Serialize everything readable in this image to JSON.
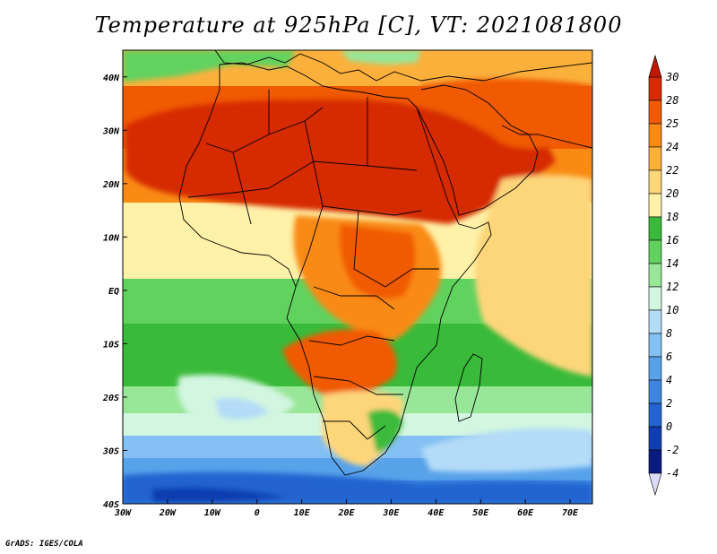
{
  "title": "Temperature at 925hPa [C], VT: 2021081800",
  "credit": "GrADS: IGES/COLA",
  "map": {
    "lon_range": [
      -30,
      75
    ],
    "lat_range": [
      -40,
      45
    ],
    "lon_ticks": [
      {
        "value": -30,
        "label": "30W"
      },
      {
        "value": -20,
        "label": "20W"
      },
      {
        "value": -10,
        "label": "10W"
      },
      {
        "value": 0,
        "label": "0"
      },
      {
        "value": 10,
        "label": "10E"
      },
      {
        "value": 20,
        "label": "20E"
      },
      {
        "value": 30,
        "label": "30E"
      },
      {
        "value": 40,
        "label": "40E"
      },
      {
        "value": 50,
        "label": "50E"
      },
      {
        "value": 60,
        "label": "60E"
      },
      {
        "value": 70,
        "label": "70E"
      }
    ],
    "lat_ticks": [
      {
        "value": 40,
        "label": "40N"
      },
      {
        "value": 30,
        "label": "30N"
      },
      {
        "value": 20,
        "label": "20N"
      },
      {
        "value": 10,
        "label": "10N"
      },
      {
        "value": 0,
        "label": "EQ"
      },
      {
        "value": -10,
        "label": "10S"
      },
      {
        "value": -20,
        "label": "20S"
      },
      {
        "value": -30,
        "label": "30S"
      },
      {
        "value": -40,
        "label": "40S"
      }
    ]
  },
  "colorbar": {
    "labels": [
      "30",
      "28",
      "25",
      "24",
      "22",
      "20",
      "18",
      "16",
      "14",
      "12",
      "10",
      "8",
      "6",
      "4",
      "2",
      "0",
      "-2",
      "-4"
    ],
    "colors": [
      "#d62a00",
      "#f05a00",
      "#f98a14",
      "#fbb03c",
      "#fed67a",
      "#fff1a8",
      "#3aba3a",
      "#62d25e",
      "#98e698",
      "#d2f6e0",
      "#b4dcf8",
      "#84c0f4",
      "#58a2ea",
      "#3c86e0",
      "#2264d0",
      "#103eb0",
      "#0a1a80"
    ],
    "top_arrow_color": "#c01800",
    "bottom_arrow_color": "#dcdcf8"
  }
}
